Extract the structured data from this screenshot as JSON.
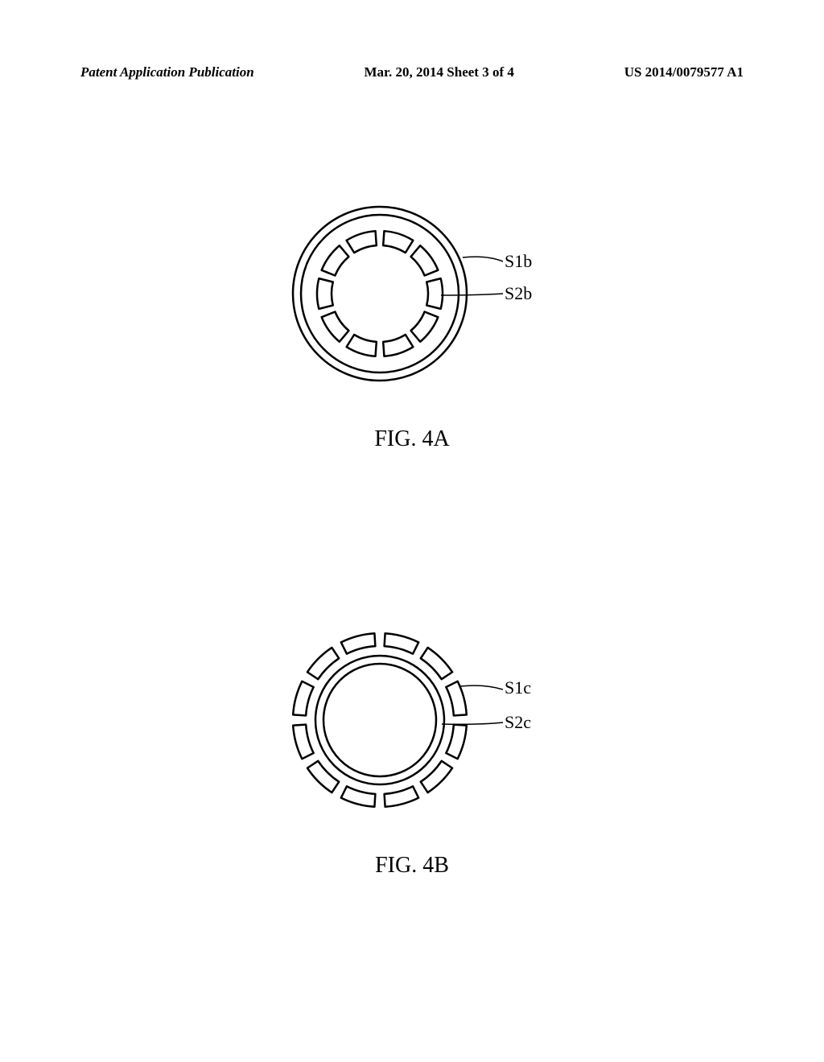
{
  "header": {
    "left": "Patent Application Publication",
    "center": "Mar. 20, 2014  Sheet 3 of 4",
    "right": "US 2014/0079577 A1"
  },
  "fig4a": {
    "caption": "FIG. 4A",
    "label1": "S1b",
    "label2": "S2b",
    "outer_radius": 108,
    "inner_ring_radius": 98,
    "slot_outer_radius": 78,
    "slot_inner_radius": 60,
    "slot_count": 10,
    "stroke_color": "#000000",
    "stroke_width": 2.5
  },
  "fig4b": {
    "caption": "FIG. 4B",
    "label1": "S1c",
    "label2": "S2c",
    "slot_outer_radius": 108,
    "slot_inner_radius": 92,
    "inner_ring_outer": 80,
    "inner_ring_inner": 70,
    "slot_count": 12,
    "stroke_color": "#000000",
    "stroke_width": 2.5
  }
}
